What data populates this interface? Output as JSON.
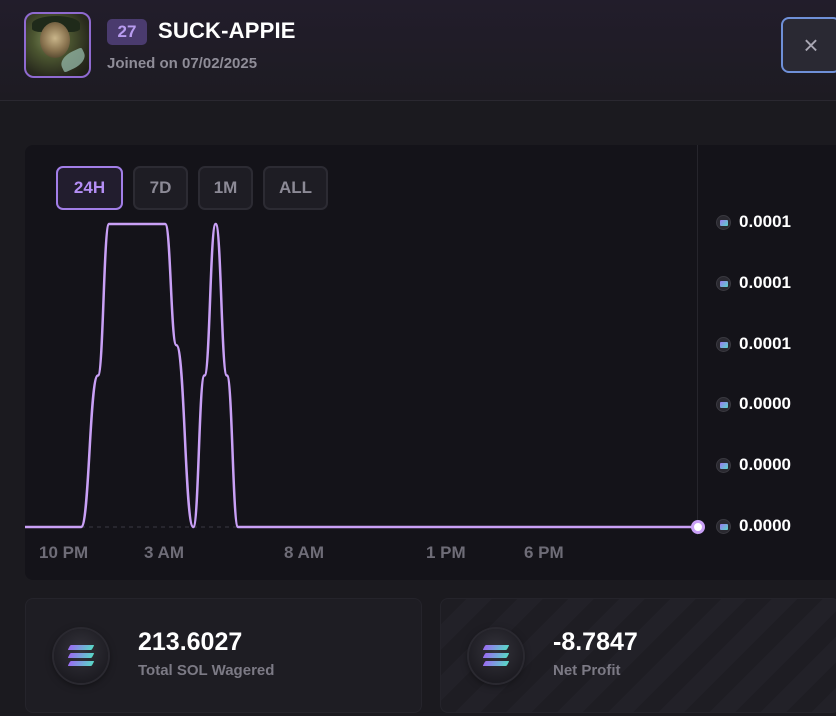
{
  "profile": {
    "level": "27",
    "username": "SUCK-APPIE",
    "joined": "Joined on 07/02/2025"
  },
  "close_label": "×",
  "range_tabs": [
    "24H",
    "7D",
    "1M",
    "ALL"
  ],
  "active_range": "24H",
  "chart_data": {
    "type": "line",
    "x_ticks": [
      "10 PM",
      "3 AM",
      "8 AM",
      "1 PM",
      "6 PM"
    ],
    "y_ticks": [
      "0.0001",
      "0.0001",
      "0.0001",
      "0.0000",
      "0.0000",
      "0.0000"
    ],
    "y_range": [
      0,
      0.0001
    ],
    "series": [
      {
        "color": "#c9a0f6",
        "points": [
          [
            0,
            0
          ],
          [
            1.0,
            0
          ],
          [
            1.3,
            5e-05
          ],
          [
            1.5,
            0.0001
          ],
          [
            2.5,
            0.0001
          ],
          [
            2.7,
            6e-05
          ],
          [
            3.0,
            0
          ],
          [
            3.2,
            5e-05
          ],
          [
            3.4,
            0.0001
          ],
          [
            3.6,
            5e-05
          ],
          [
            3.8,
            0
          ],
          [
            12,
            0
          ]
        ]
      }
    ],
    "x_range": [
      0,
      12
    ],
    "grid": false
  },
  "stats": {
    "wagered_value": "213.6027",
    "wagered_label": "Total SOL Wagered",
    "profit_value": "-8.7847",
    "profit_label": "Net Profit"
  },
  "colors": {
    "accent": "#a27ee8",
    "line": "#c9a0f6",
    "background": "#1b1a1f",
    "panel": "#141319"
  },
  "icons": {
    "sol": "solana-icon",
    "close": "close-icon"
  }
}
